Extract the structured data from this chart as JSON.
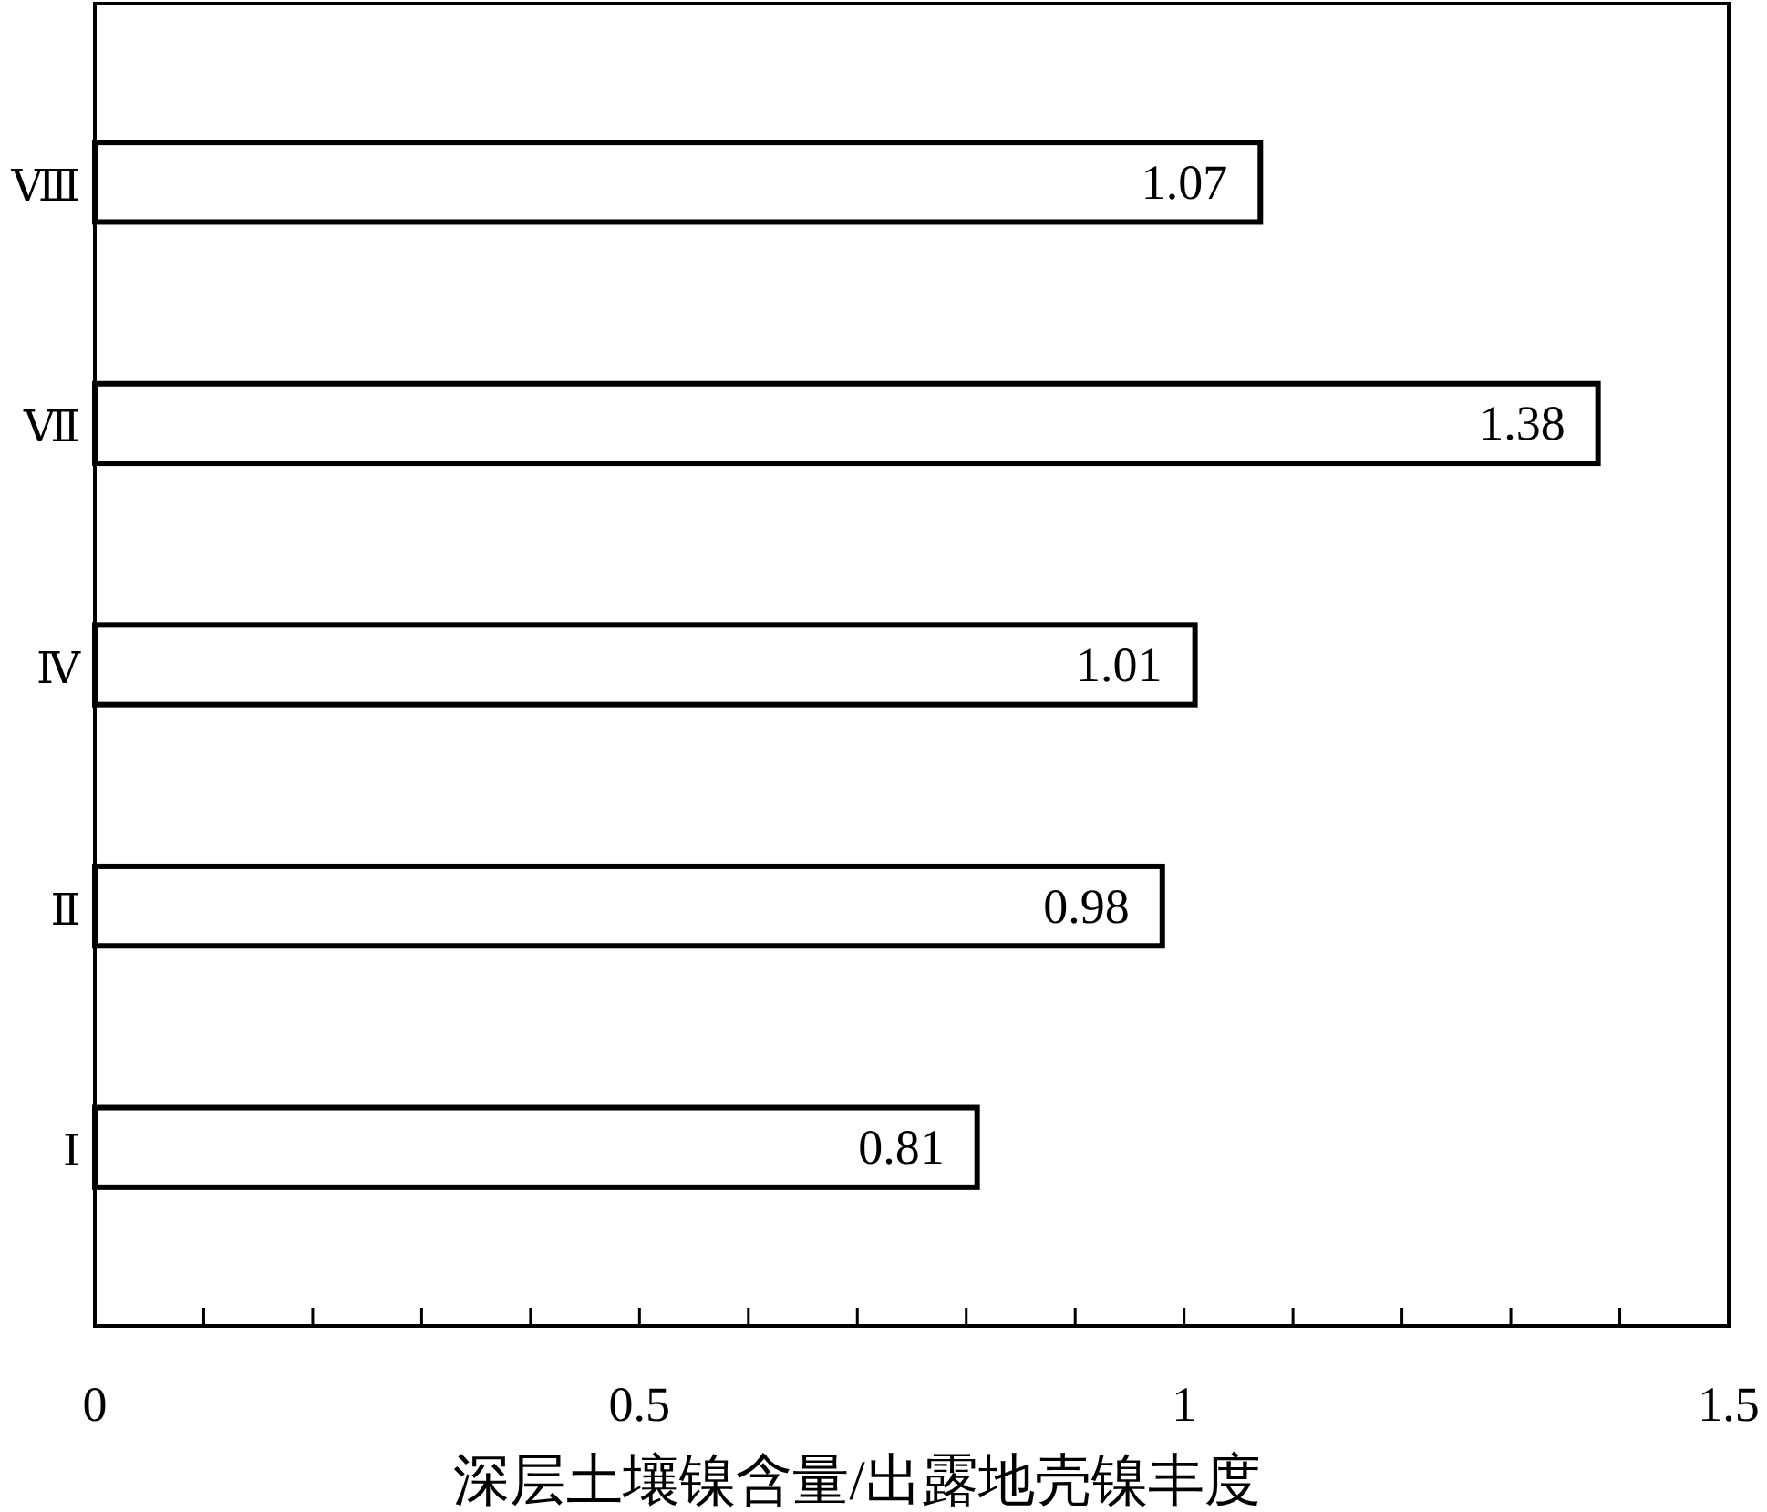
{
  "chart_data": {
    "type": "bar",
    "orientation": "horizontal",
    "xlabel": "深层土壤镍含量/出露地壳镍丰度",
    "categories": [
      "Ⅷ",
      "Ⅶ",
      "Ⅳ",
      "Ⅱ",
      "Ⅰ"
    ],
    "values": [
      1.07,
      1.38,
      1.01,
      0.98,
      0.81
    ],
    "color": "#ffffff",
    "data_labels": true,
    "xlim": [
      0,
      1.5
    ],
    "xticks": [
      0,
      {
        "value": 0.1,
        "label": null
      },
      {
        "value": 0.2,
        "label": null
      },
      {
        "value": 0.3,
        "label": null
      },
      {
        "value": 0.4,
        "label": null
      },
      0.5,
      {
        "value": 0.6,
        "label": null
      },
      {
        "value": 0.7,
        "label": null
      },
      {
        "value": 0.8,
        "label": null
      },
      {
        "value": 0.9,
        "label": null
      },
      1,
      {
        "value": 1.1,
        "label": null
      },
      {
        "value": 1.2,
        "label": null
      },
      {
        "value": 1.3,
        "label": null
      },
      {
        "value": 1.4,
        "label": null
      },
      1.5
    ],
    "grid": false
  }
}
